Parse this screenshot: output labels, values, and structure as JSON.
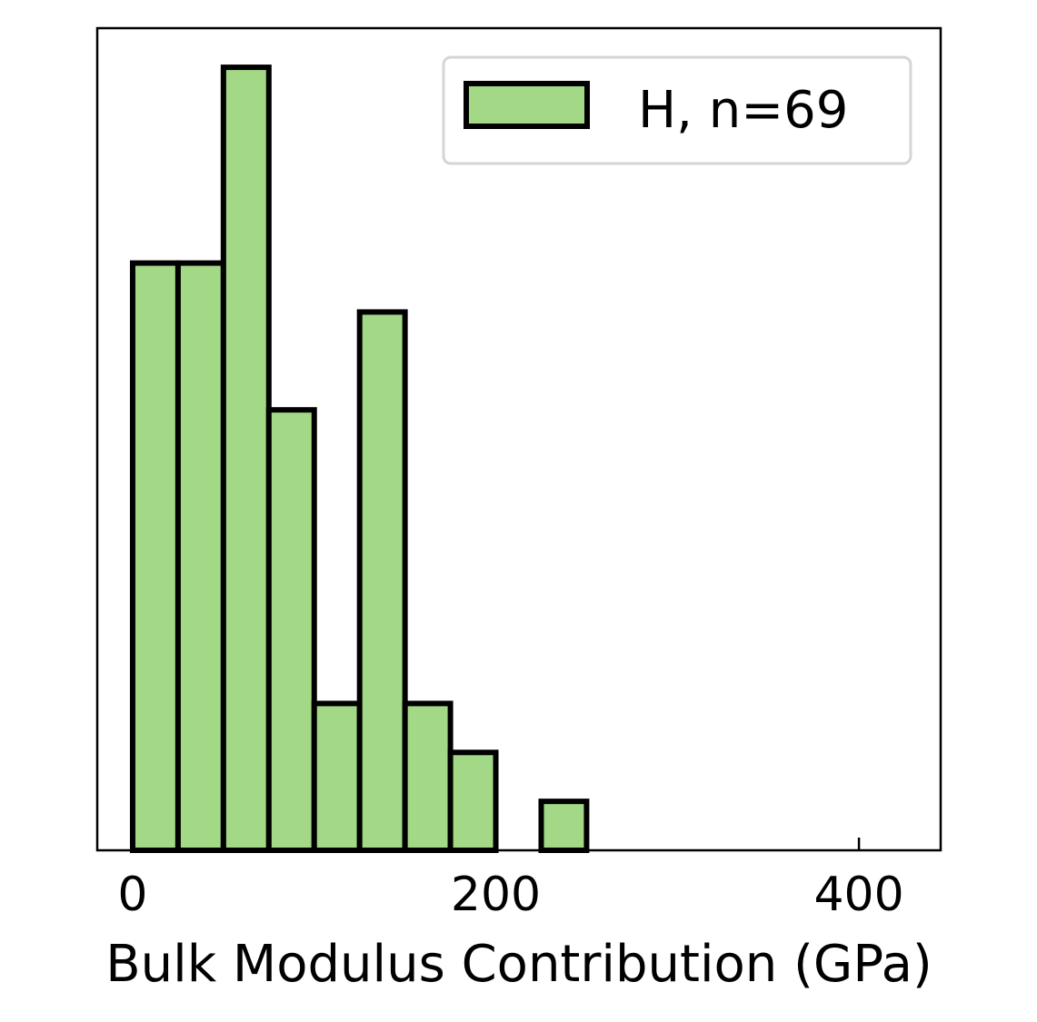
{
  "chart_data": {
    "type": "bar",
    "subtype": "histogram",
    "title": "",
    "xlabel": "Bulk Modulus Contribution (GPa)",
    "ylabel": "",
    "xlim": [
      -19.5,
      445
    ],
    "ylim": [
      0,
      16.8
    ],
    "xticks": [
      0,
      200,
      400
    ],
    "xtick_labels": [
      "0",
      "200",
      "400"
    ],
    "yticks_shown": false,
    "grid": false,
    "legend": {
      "position": "top-right",
      "entries": [
        "H, n=69"
      ]
    },
    "series": [
      {
        "name": "H, n=69",
        "color": "#a3d986",
        "edge_color": "#000000",
        "bins": [
          {
            "x0": 0,
            "x1": 25,
            "count": 12
          },
          {
            "x0": 25,
            "x1": 50,
            "count": 12
          },
          {
            "x0": 50,
            "x1": 75,
            "count": 16
          },
          {
            "x0": 75,
            "x1": 100,
            "count": 9
          },
          {
            "x0": 100,
            "x1": 125,
            "count": 3
          },
          {
            "x0": 125,
            "x1": 150,
            "count": 11
          },
          {
            "x0": 150,
            "x1": 175,
            "count": 3
          },
          {
            "x0": 175,
            "x1": 200,
            "count": 2
          },
          {
            "x0": 200,
            "x1": 225,
            "count": 0
          },
          {
            "x0": 225,
            "x1": 250,
            "count": 1
          },
          {
            "x0": 250,
            "x1": 275,
            "count": 0
          },
          {
            "x0": 275,
            "x1": 300,
            "count": 0
          },
          {
            "x0": 300,
            "x1": 325,
            "count": 0
          },
          {
            "x0": 325,
            "x1": 350,
            "count": 0
          },
          {
            "x0": 350,
            "x1": 375,
            "count": 0
          },
          {
            "x0": 375,
            "x1": 400,
            "count": 0
          },
          {
            "x0": 400,
            "x1": 425,
            "count": 0
          },
          {
            "x0": 425,
            "x1": 450,
            "count": 0
          }
        ]
      }
    ]
  }
}
